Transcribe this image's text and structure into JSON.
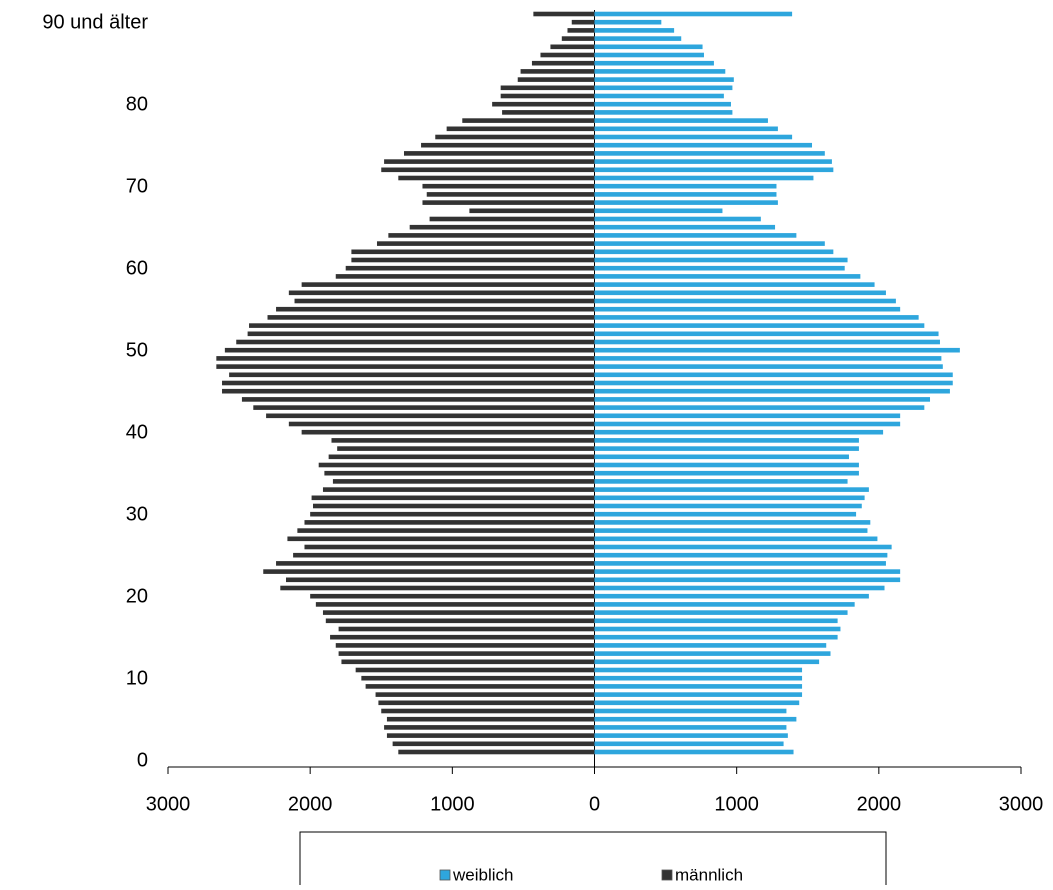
{
  "chart_data": {
    "type": "pyramid",
    "categories": [
      "0",
      null,
      null,
      null,
      null,
      null,
      null,
      null,
      null,
      null,
      "10",
      null,
      null,
      null,
      null,
      null,
      null,
      null,
      null,
      null,
      "20",
      null,
      null,
      null,
      null,
      null,
      null,
      null,
      null,
      null,
      "30",
      null,
      null,
      null,
      null,
      null,
      null,
      null,
      null,
      null,
      "40",
      null,
      null,
      null,
      null,
      null,
      null,
      null,
      null,
      null,
      "50",
      null,
      null,
      null,
      null,
      null,
      null,
      null,
      null,
      null,
      "60",
      null,
      null,
      null,
      null,
      null,
      null,
      null,
      null,
      null,
      "70",
      null,
      null,
      null,
      null,
      null,
      null,
      null,
      null,
      null,
      "80",
      null,
      null,
      null,
      null,
      null,
      null,
      null,
      null,
      null,
      "90 und älter"
    ],
    "series": [
      {
        "name": "weiblich",
        "color": "#2ea6dd",
        "values": [
          1400,
          1330,
          1360,
          1350,
          1420,
          1350,
          1440,
          1460,
          1460,
          1460,
          1460,
          1580,
          1660,
          1630,
          1710,
          1730,
          1710,
          1780,
          1830,
          1930,
          2040,
          2150,
          2150,
          2050,
          2060,
          2090,
          1990,
          1920,
          1940,
          1840,
          1880,
          1900,
          1930,
          1780,
          1860,
          1860,
          1790,
          1860,
          1860,
          2030,
          2150,
          2150,
          2320,
          2360,
          2500,
          2520,
          2520,
          2450,
          2440,
          2570,
          2430,
          2420,
          2320,
          2280,
          2150,
          2120,
          2050,
          1970,
          1870,
          1760,
          1780,
          1680,
          1620,
          1420,
          1270,
          1170,
          900,
          1290,
          1280,
          1280,
          1540,
          1680,
          1670,
          1620,
          1530,
          1390,
          1290,
          1220,
          970,
          960,
          910,
          970,
          980,
          920,
          840,
          770,
          760,
          610,
          560,
          470,
          1390
        ]
      },
      {
        "name": "männlich",
        "color": "#333333",
        "values": [
          -1380,
          -1420,
          -1460,
          -1480,
          -1460,
          -1500,
          -1520,
          -1540,
          -1610,
          -1640,
          -1680,
          -1780,
          -1800,
          -1820,
          -1860,
          -1800,
          -1890,
          -1910,
          -1960,
          -2000,
          -2210,
          -2170,
          -2330,
          -2240,
          -2120,
          -2040,
          -2160,
          -2090,
          -2040,
          -2000,
          -1980,
          -1990,
          -1910,
          -1840,
          -1900,
          -1940,
          -1870,
          -1810,
          -1850,
          -2060,
          -2150,
          -2310,
          -2400,
          -2480,
          -2620,
          -2620,
          -2570,
          -2660,
          -2660,
          -2600,
          -2520,
          -2440,
          -2430,
          -2300,
          -2240,
          -2110,
          -2150,
          -2060,
          -1820,
          -1750,
          -1710,
          -1710,
          -1530,
          -1450,
          -1300,
          -1160,
          -880,
          -1210,
          -1180,
          -1210,
          -1380,
          -1500,
          -1480,
          -1340,
          -1220,
          -1120,
          -1040,
          -930,
          -650,
          -720,
          -660,
          -660,
          -540,
          -520,
          -440,
          -380,
          -310,
          -230,
          -190,
          -160,
          -430
        ]
      }
    ],
    "xlim": [
      -3000,
      3000
    ],
    "xticks": [
      {
        "value": -3000,
        "label": "3000"
      },
      {
        "value": -2000,
        "label": "2000"
      },
      {
        "value": -1000,
        "label": "1000"
      },
      0,
      1000,
      2000,
      3000
    ],
    "legend": "bottom"
  }
}
